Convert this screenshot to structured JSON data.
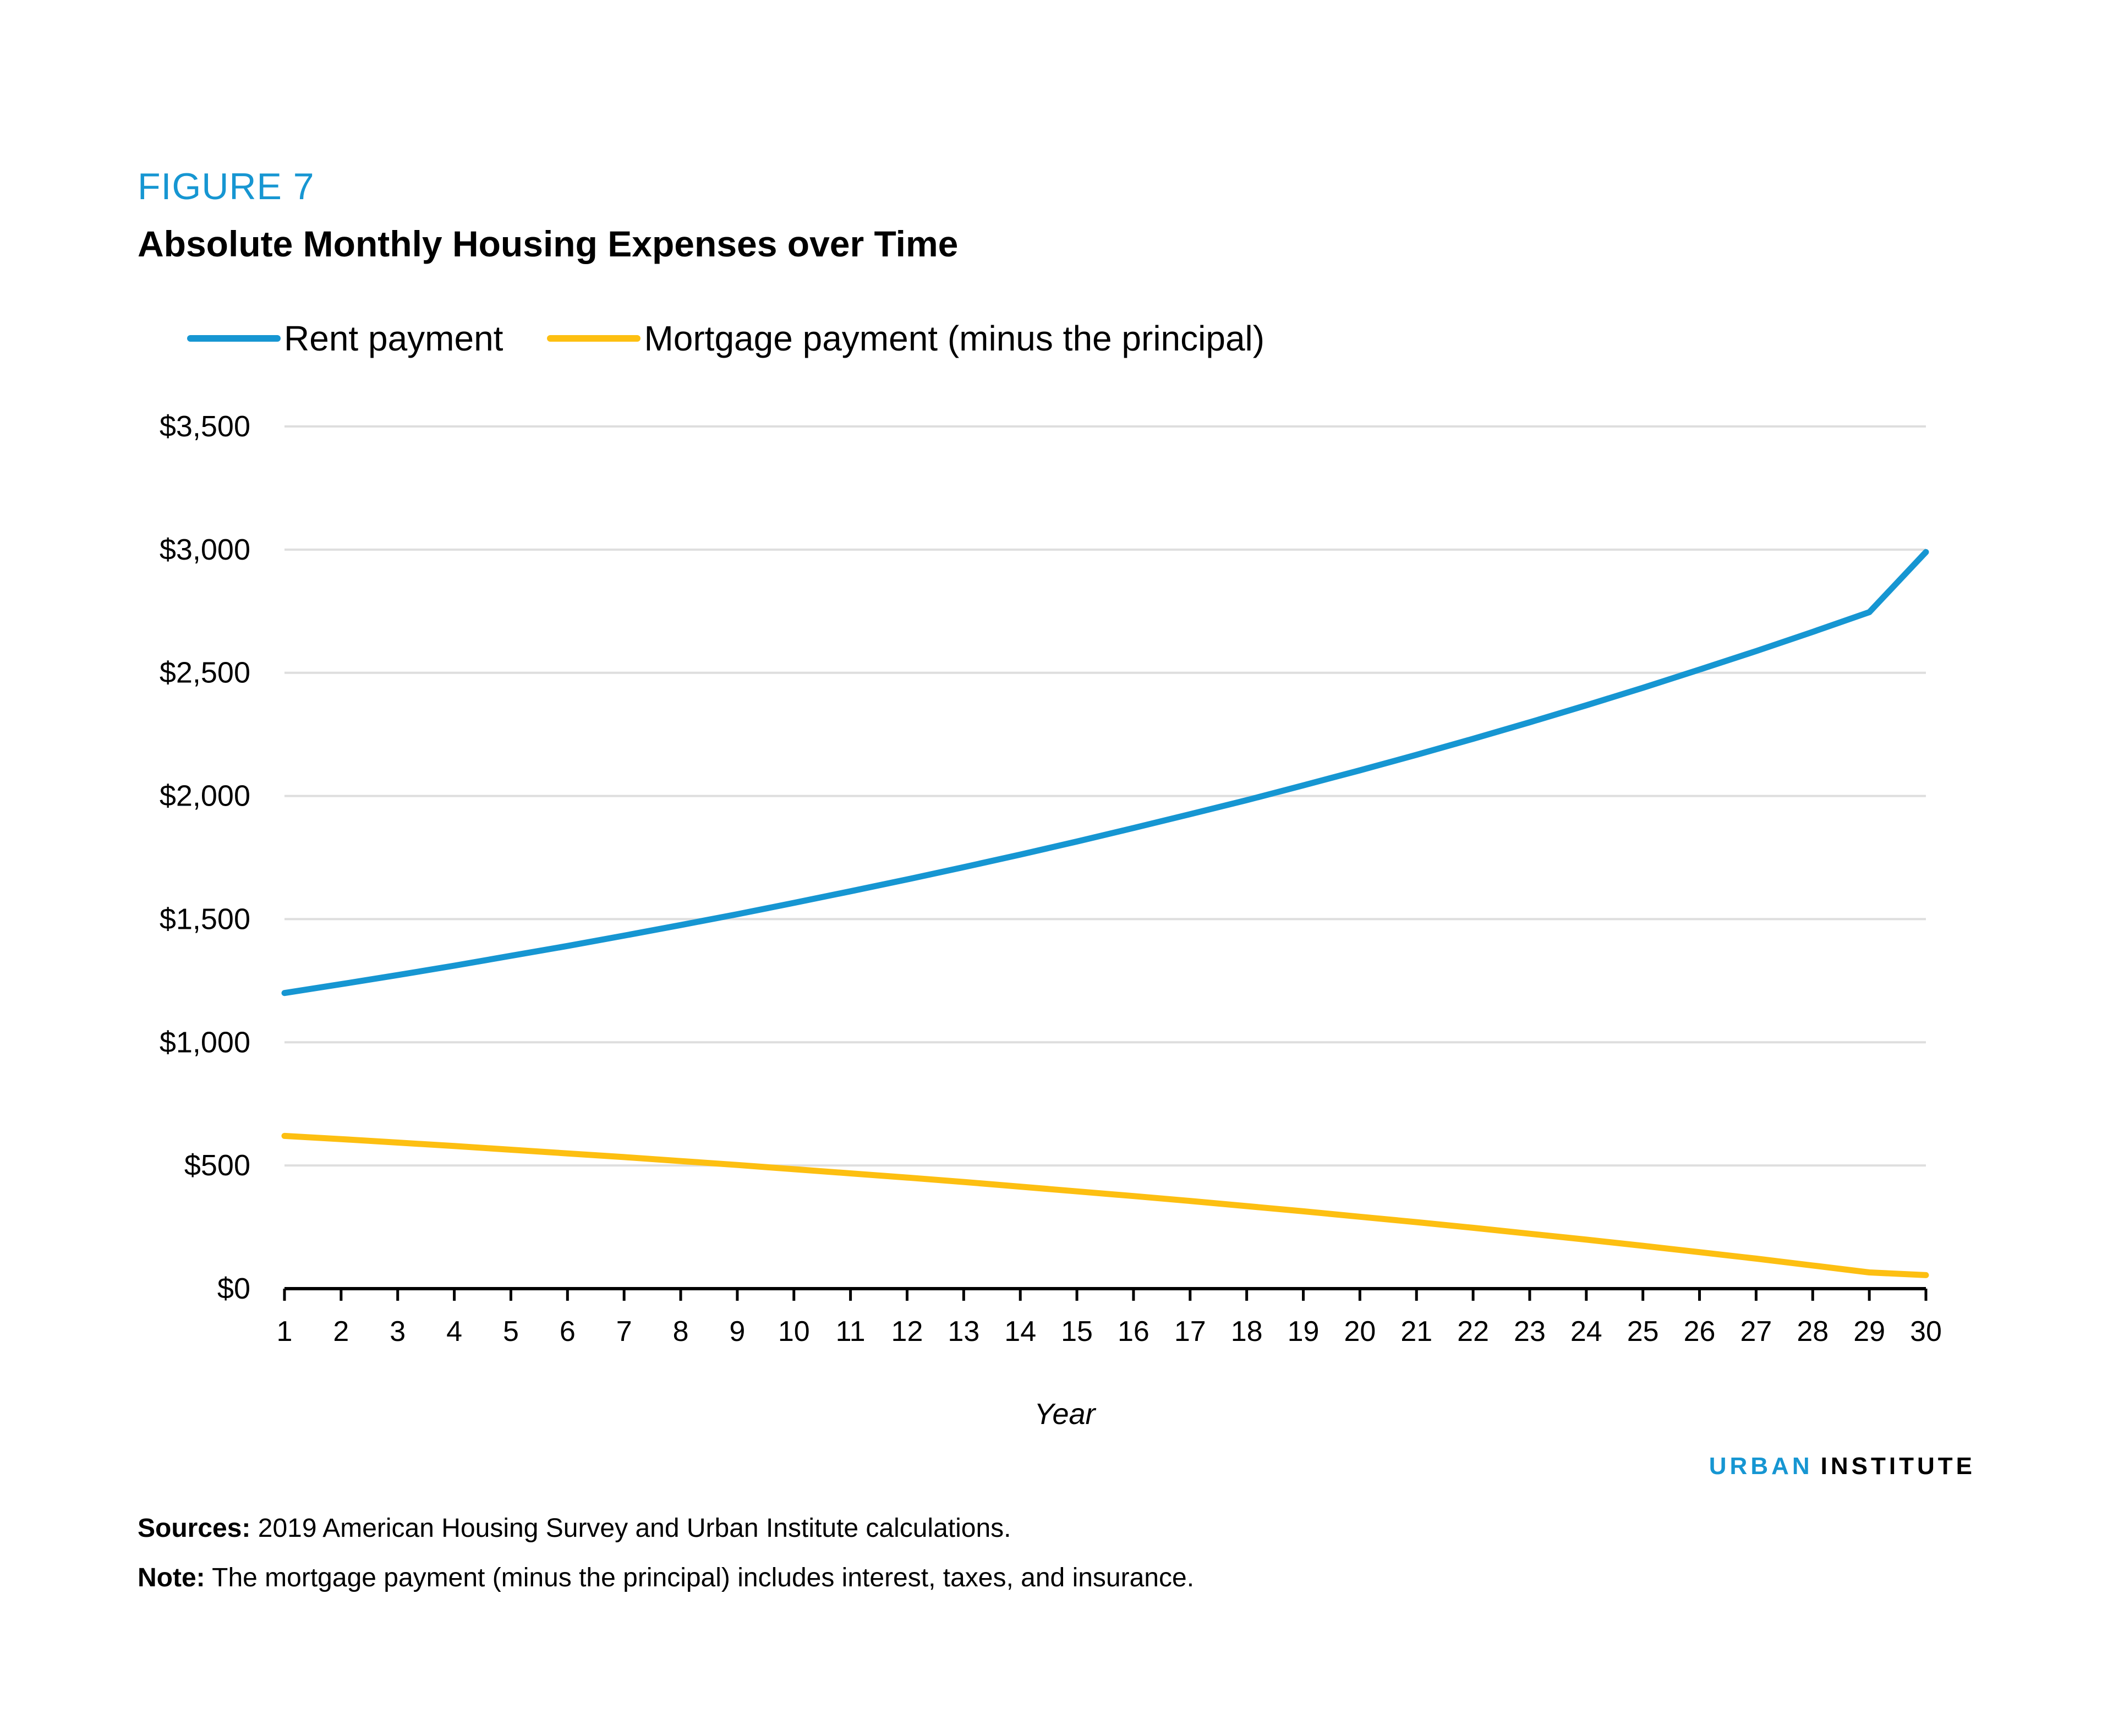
{
  "figure_label": "FIGURE 7",
  "title": "Absolute Monthly Housing Expenses over Time",
  "brand": {
    "part1": "URBAN",
    "part2": "INSTITUTE"
  },
  "sources": {
    "label": "Sources:",
    "text": " 2019 American Housing Survey and Urban Institute calculations."
  },
  "note": {
    "label": "Note:",
    "text": " The mortgage payment (minus the principal) includes interest, taxes, and insurance."
  },
  "colors": {
    "rent": "#1696d2",
    "mortgage": "#fdbf11",
    "grid": "#dedede",
    "axis": "#000000"
  },
  "chart_data": {
    "type": "line",
    "title": "Absolute Monthly Housing Expenses over Time",
    "xlabel": "Year",
    "ylabel": "",
    "xlim": [
      1,
      30
    ],
    "ylim": [
      0,
      3500
    ],
    "yticks": [
      0,
      500,
      1000,
      1500,
      2000,
      2500,
      3000,
      3500
    ],
    "ytick_labels": [
      "$0",
      "$500",
      "$1,000",
      "$1,500",
      "$2,000",
      "$2,500",
      "$3,000",
      "$3,500"
    ],
    "x": [
      1,
      2,
      3,
      4,
      5,
      6,
      7,
      8,
      9,
      10,
      11,
      12,
      13,
      14,
      15,
      16,
      17,
      18,
      19,
      20,
      21,
      22,
      23,
      24,
      25,
      26,
      27,
      28,
      29,
      30
    ],
    "grid": true,
    "legend_position": "top-left",
    "series": [
      {
        "name": "Rent payment",
        "color": "#1696d2",
        "values": [
          1200,
          1236,
          1273,
          1311,
          1351,
          1391,
          1433,
          1476,
          1520,
          1566,
          1613,
          1661,
          1711,
          1762,
          1815,
          1870,
          1926,
          1983,
          2043,
          2104,
          2167,
          2232,
          2299,
          2368,
          2439,
          2513,
          2588,
          2666,
          2746,
          2990
        ]
      },
      {
        "name": "Mortgage payment (minus the principal)",
        "color": "#fdbf11",
        "values": [
          620,
          607,
          593,
          579,
          564,
          549,
          534,
          518,
          502,
          485,
          468,
          451,
          433,
          414,
          395,
          376,
          356,
          335,
          314,
          292,
          270,
          247,
          223,
          199,
          174,
          148,
          122,
          94,
          66,
          55
        ]
      }
    ]
  }
}
